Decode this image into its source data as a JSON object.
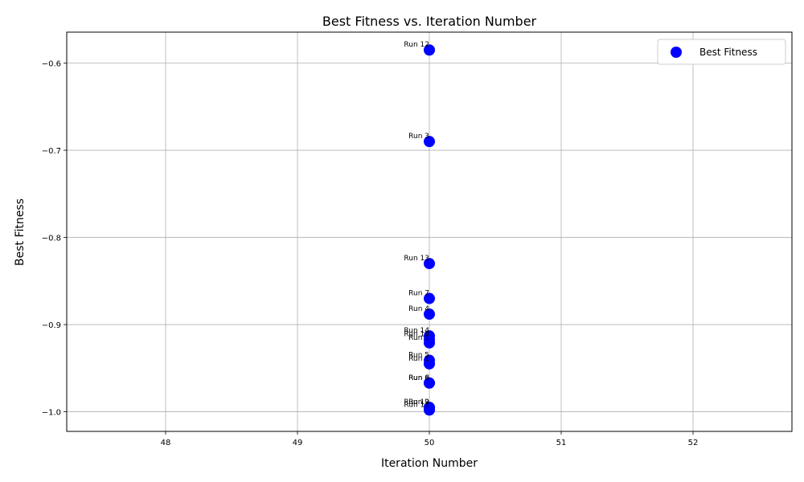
{
  "chart_data": {
    "type": "scatter",
    "title": "Best Fitness vs. Iteration Number",
    "xlabel": "Iteration Number",
    "ylabel": "Best Fitness",
    "xlim": [
      47.25,
      52.75
    ],
    "ylim": [
      -1.0225,
      -0.5645
    ],
    "xticks": [
      "48",
      "49",
      "50",
      "51",
      "52"
    ],
    "yticks": [
      "−1.0",
      "−0.9",
      "−0.8",
      "−0.7",
      "−0.6"
    ],
    "xtick_values": [
      48,
      49,
      50,
      51,
      52
    ],
    "ytick_values": [
      -1.0,
      -0.9,
      -0.8,
      -0.7,
      -0.6
    ],
    "grid": true,
    "legend": {
      "position": "top-right",
      "entries": [
        "Best Fitness"
      ]
    },
    "series": [
      {
        "name": "Best Fitness",
        "color": "#0000ff",
        "points": [
          {
            "label": "Run 12",
            "x": 50,
            "y": -0.585
          },
          {
            "label": "Run 3",
            "x": 50,
            "y": -0.69
          },
          {
            "label": "Run 13",
            "x": 50,
            "y": -0.83
          },
          {
            "label": "Run 7",
            "x": 50,
            "y": -0.87
          },
          {
            "label": "Run 4",
            "x": 50,
            "y": -0.888
          },
          {
            "label": "Run 14",
            "x": 50,
            "y": -0.913
          },
          {
            "label": "Run 16",
            "x": 50,
            "y": -0.917
          },
          {
            "label": "Run 1",
            "x": 50,
            "y": -0.921
          },
          {
            "label": "Run 5",
            "x": 50,
            "y": -0.941
          },
          {
            "label": "Run 1",
            "x": 50,
            "y": -0.945
          },
          {
            "label": "Run 6",
            "x": 50,
            "y": -0.967
          },
          {
            "label": "Run 8",
            "x": 50,
            "y": -0.967
          },
          {
            "label": "Run 19",
            "x": 50,
            "y": -0.995
          },
          {
            "label": "Run 2",
            "x": 50,
            "y": -0.995
          },
          {
            "label": "Run 11",
            "x": 50,
            "y": -0.998
          }
        ]
      }
    ]
  }
}
